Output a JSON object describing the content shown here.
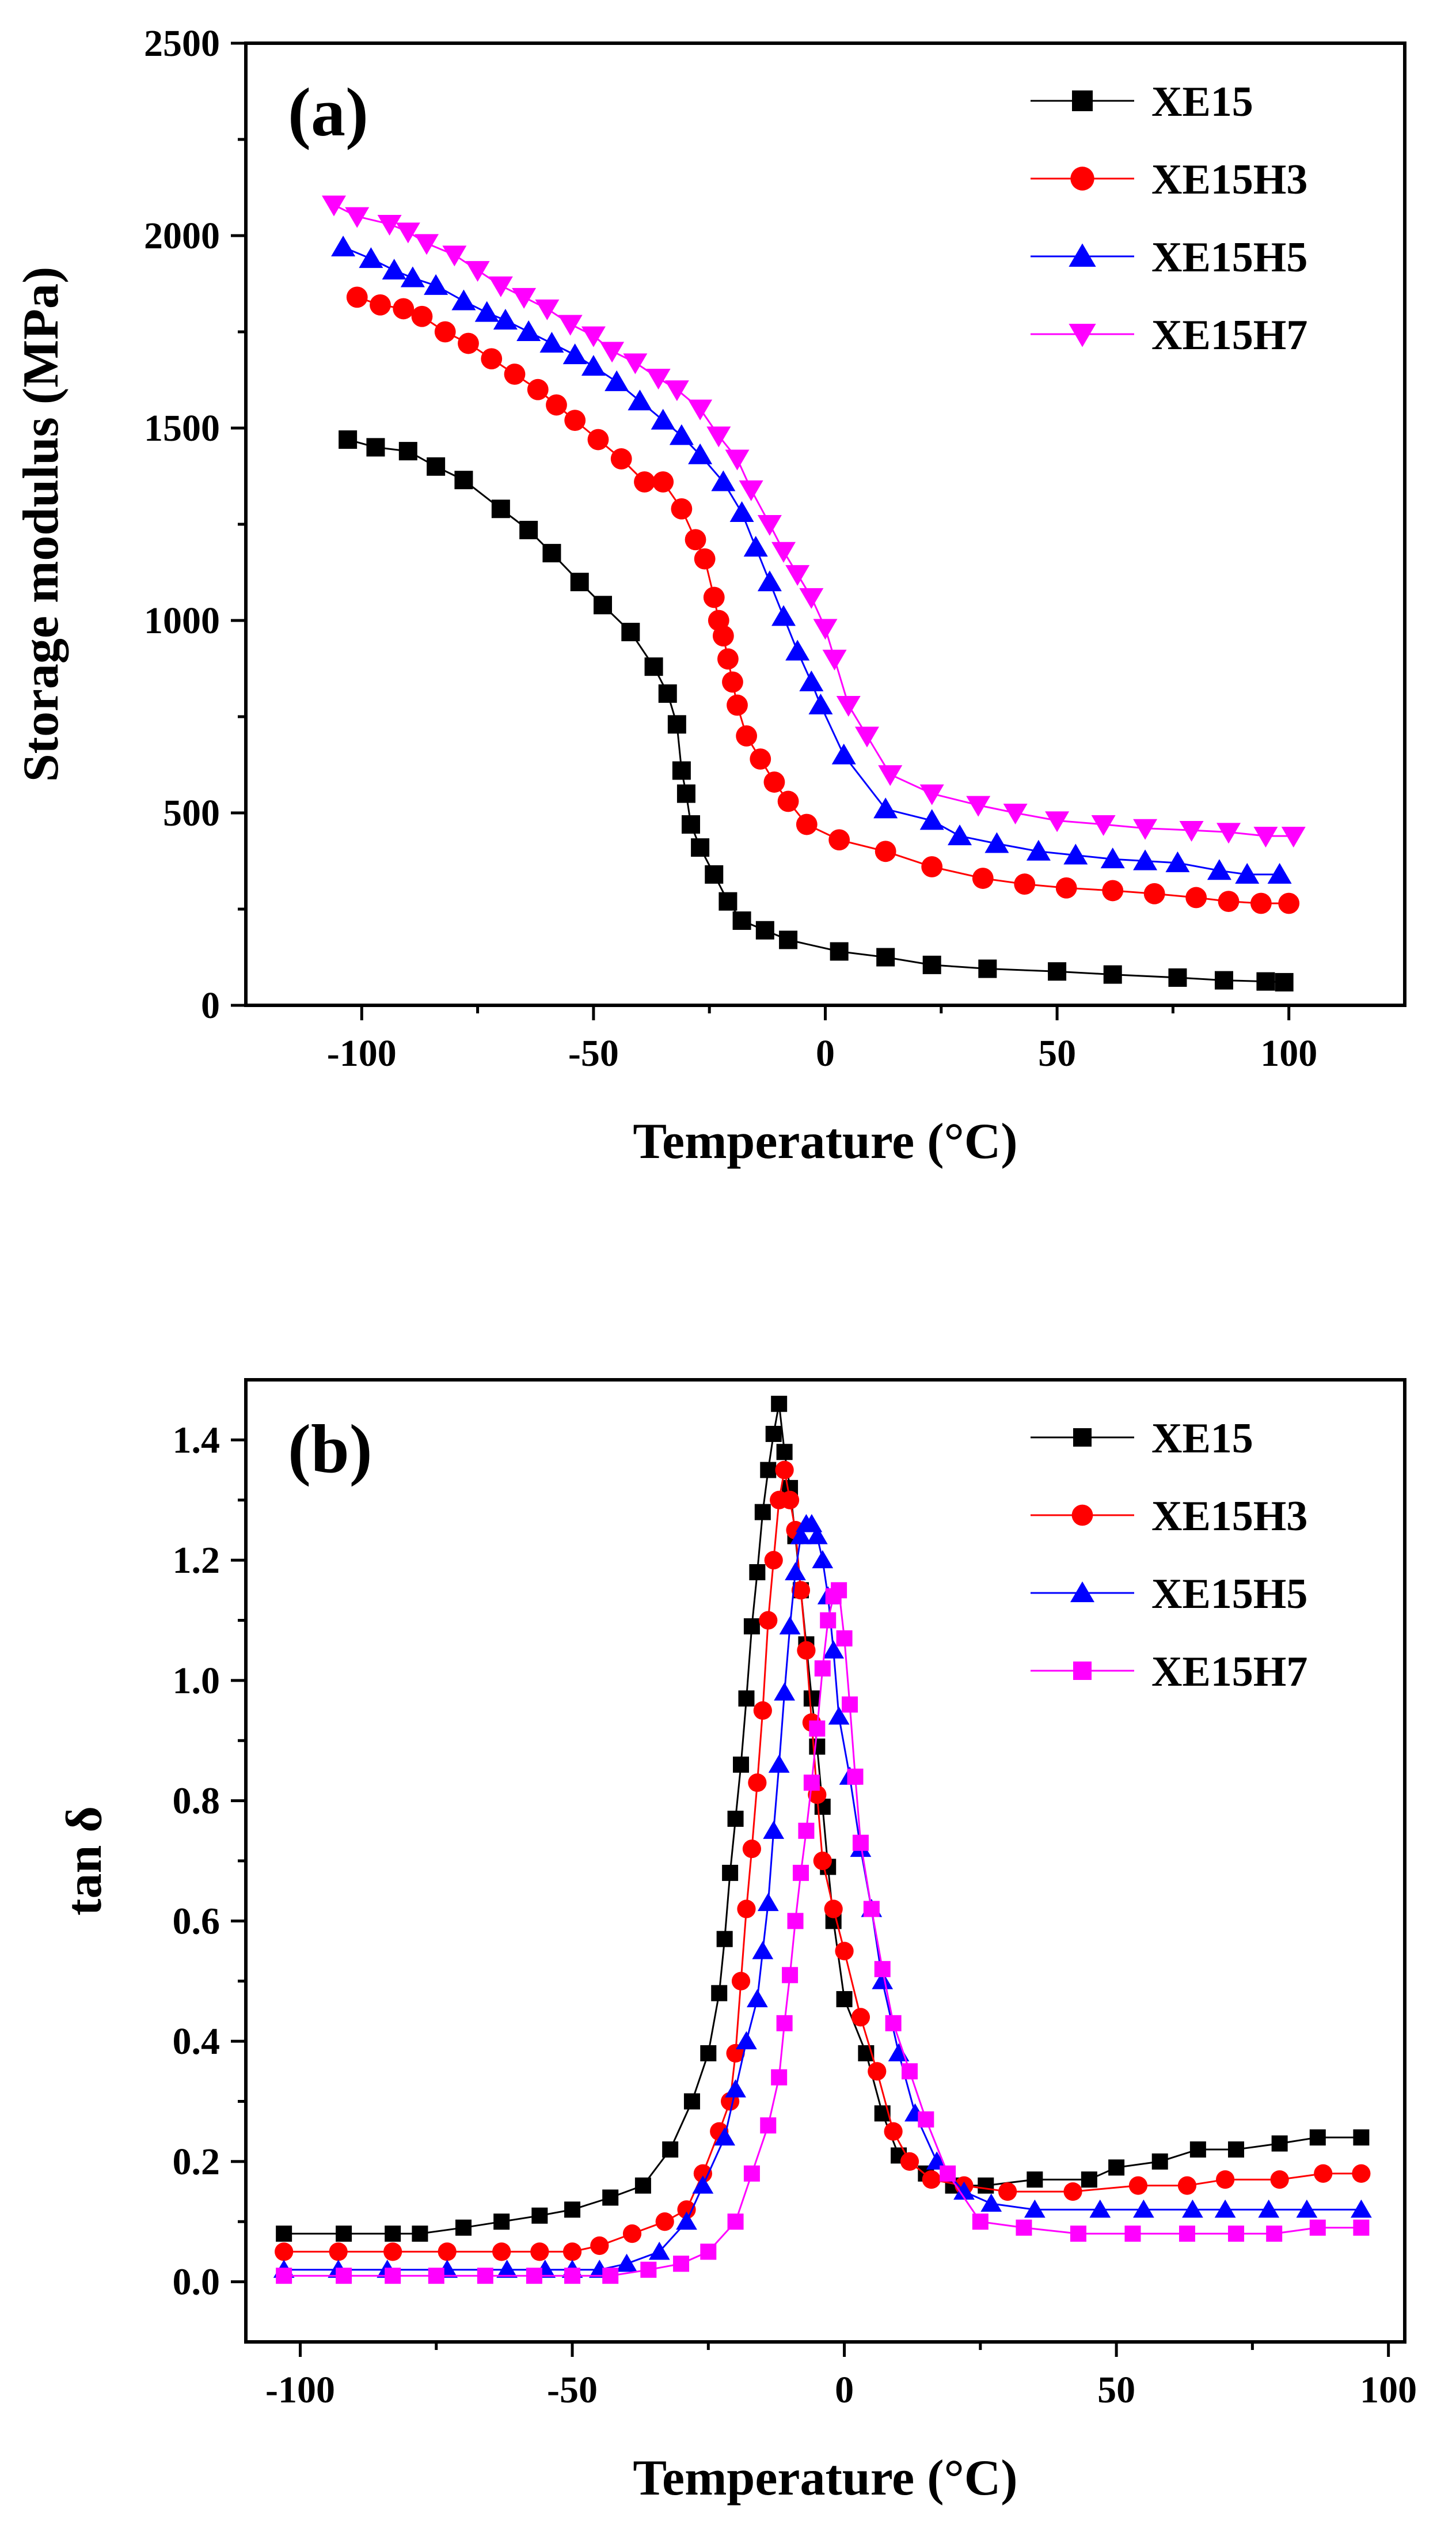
{
  "chart_data": [
    {
      "type": "line",
      "panel_label": "(a)",
      "title": "",
      "xlabel": "Temperature (°C)",
      "ylabel": "Storage modulus (MPa)",
      "xlim": [
        -125,
        125
      ],
      "ylim": [
        0,
        2500
      ],
      "xticks": [
        -100,
        -50,
        0,
        50,
        100
      ],
      "yticks": [
        0,
        500,
        1000,
        1500,
        2000,
        2500
      ],
      "legend_position": "top-right",
      "grid": false,
      "series": [
        {
          "name": "XE15",
          "color": "#000000",
          "marker": "square",
          "x": [
            -103,
            -97,
            -90,
            -84,
            -78,
            -70,
            -64,
            -59,
            -53,
            -48,
            -42,
            -37,
            -34,
            -32,
            -31,
            -30,
            -29,
            -27,
            -24,
            -21,
            -18,
            -13,
            -8,
            3,
            13,
            23,
            35,
            50,
            62,
            76,
            86,
            95,
            99
          ],
          "y": [
            1470,
            1450,
            1440,
            1400,
            1365,
            1290,
            1235,
            1175,
            1100,
            1040,
            970,
            880,
            810,
            730,
            610,
            550,
            470,
            410,
            340,
            270,
            220,
            195,
            170,
            140,
            125,
            105,
            95,
            88,
            80,
            72,
            65,
            62,
            60
          ]
        },
        {
          "name": "XE15H3",
          "color": "#ff0000",
          "marker": "circle",
          "x": [
            -101,
            -96,
            -91,
            -87,
            -82,
            -77,
            -72,
            -67,
            -62,
            -58,
            -54,
            -49,
            -44,
            -39,
            -35,
            -31,
            -28,
            -26,
            -24,
            -23,
            -22,
            -21,
            -20,
            -19,
            -17,
            -14,
            -11,
            -8,
            -4,
            3,
            13,
            23,
            34,
            43,
            52,
            62,
            71,
            80,
            87,
            94,
            100
          ],
          "y": [
            1840,
            1820,
            1810,
            1790,
            1750,
            1720,
            1680,
            1640,
            1600,
            1560,
            1520,
            1470,
            1420,
            1360,
            1360,
            1290,
            1210,
            1160,
            1060,
            1000,
            960,
            900,
            840,
            780,
            700,
            640,
            580,
            530,
            470,
            430,
            400,
            360,
            330,
            315,
            305,
            298,
            290,
            280,
            270,
            265,
            265
          ]
        },
        {
          "name": "XE15H5",
          "color": "#0000ff",
          "marker": "triangle-up",
          "x": [
            -104,
            -98,
            -93,
            -89,
            -84,
            -78,
            -73,
            -69,
            -64,
            -59,
            -54,
            -50,
            -45,
            -40,
            -35,
            -31,
            -27,
            -22,
            -18,
            -15,
            -12,
            -9,
            -6,
            -3,
            -1,
            4,
            13,
            23,
            29,
            37,
            46,
            54,
            62,
            69,
            76,
            85,
            91,
            98
          ],
          "y": [
            1970,
            1940,
            1910,
            1890,
            1870,
            1830,
            1800,
            1780,
            1750,
            1720,
            1690,
            1660,
            1620,
            1570,
            1520,
            1480,
            1430,
            1360,
            1280,
            1190,
            1100,
            1010,
            920,
            840,
            780,
            650,
            510,
            480,
            440,
            420,
            400,
            390,
            380,
            375,
            370,
            350,
            340,
            340
          ]
        },
        {
          "name": "XE15H7",
          "color": "#ff00ff",
          "marker": "triangle-down",
          "x": [
            -106,
            -101,
            -94,
            -90,
            -86,
            -80,
            -75,
            -70,
            -65,
            -60,
            -55,
            -50,
            -46,
            -41,
            -36,
            -32,
            -27,
            -23,
            -19,
            -16,
            -12,
            -9,
            -6,
            -3,
            0,
            2,
            5,
            9,
            14,
            23,
            33,
            41,
            50,
            60,
            69,
            79,
            87,
            95,
            101
          ],
          "y": [
            2080,
            2050,
            2030,
            2010,
            1980,
            1950,
            1910,
            1870,
            1840,
            1810,
            1770,
            1740,
            1700,
            1670,
            1630,
            1600,
            1550,
            1480,
            1420,
            1340,
            1250,
            1180,
            1120,
            1060,
            980,
            900,
            780,
            700,
            600,
            550,
            520,
            500,
            480,
            470,
            460,
            455,
            450,
            440,
            440
          ]
        }
      ]
    },
    {
      "type": "line",
      "panel_label": "(b)",
      "title": "",
      "xlabel": "Temperature (°C)",
      "ylabel": "tan δ",
      "xlim": [
        -110,
        103
      ],
      "ylim": [
        -0.1,
        1.5
      ],
      "xticks": [
        -100,
        -50,
        0,
        50,
        100
      ],
      "yticks": [
        0.0,
        0.2,
        0.4,
        0.6,
        0.8,
        1.0,
        1.2,
        1.4
      ],
      "yticklabels": [
        "0.0",
        "0.2",
        "0.4",
        "0.6",
        "0.8",
        "1.0",
        "1.2",
        "1.4"
      ],
      "legend_position": "top-right",
      "grid": false,
      "series": [
        {
          "name": "XE15",
          "color": "#000000",
          "marker": "square",
          "x": [
            -103,
            -92,
            -83,
            -78,
            -70,
            -63,
            -56,
            -50,
            -43,
            -37,
            -32,
            -28,
            -25,
            -23,
            -22,
            -21,
            -20,
            -19,
            -18,
            -17,
            -16,
            -15,
            -14,
            -13,
            -12,
            -11,
            -10,
            -9,
            -8,
            -7,
            -6,
            -5,
            -4,
            -3,
            -2,
            0,
            4,
            7,
            10,
            15,
            20,
            26,
            35,
            45,
            50,
            58,
            65,
            72,
            80,
            87,
            95
          ],
          "y": [
            0.08,
            0.08,
            0.08,
            0.08,
            0.09,
            0.1,
            0.11,
            0.12,
            0.14,
            0.16,
            0.22,
            0.3,
            0.38,
            0.48,
            0.57,
            0.68,
            0.77,
            0.86,
            0.97,
            1.09,
            1.18,
            1.28,
            1.35,
            1.41,
            1.46,
            1.38,
            1.32,
            1.24,
            1.15,
            1.06,
            0.97,
            0.89,
            0.79,
            0.69,
            0.6,
            0.47,
            0.38,
            0.28,
            0.21,
            0.18,
            0.16,
            0.16,
            0.17,
            0.17,
            0.19,
            0.2,
            0.22,
            0.22,
            0.23,
            0.24,
            0.24
          ]
        },
        {
          "name": "XE15H3",
          "color": "#ff0000",
          "marker": "circle",
          "x": [
            -103,
            -93,
            -83,
            -73,
            -63,
            -56,
            -50,
            -45,
            -39,
            -33,
            -29,
            -26,
            -23,
            -21,
            -20,
            -19,
            -18,
            -17,
            -16,
            -15,
            -14,
            -13,
            -12,
            -11,
            -10,
            -9,
            -8,
            -7,
            -6,
            -5,
            -4,
            -2,
            0,
            3,
            6,
            9,
            12,
            16,
            22,
            30,
            42,
            54,
            63,
            70,
            80,
            88,
            95
          ],
          "y": [
            0.05,
            0.05,
            0.05,
            0.05,
            0.05,
            0.05,
            0.05,
            0.06,
            0.08,
            0.1,
            0.12,
            0.18,
            0.25,
            0.3,
            0.38,
            0.5,
            0.62,
            0.72,
            0.83,
            0.95,
            1.1,
            1.2,
            1.3,
            1.35,
            1.3,
            1.25,
            1.15,
            1.05,
            0.93,
            0.81,
            0.7,
            0.62,
            0.55,
            0.44,
            0.35,
            0.25,
            0.2,
            0.17,
            0.16,
            0.15,
            0.15,
            0.16,
            0.16,
            0.17,
            0.17,
            0.18,
            0.18
          ]
        },
        {
          "name": "XE15H5",
          "color": "#0000ff",
          "marker": "triangle-up",
          "x": [
            -103,
            -93,
            -84,
            -73,
            -62,
            -55,
            -50,
            -45,
            -40,
            -34,
            -29,
            -26,
            -22,
            -20,
            -18,
            -16,
            -15,
            -14,
            -13,
            -12,
            -11,
            -10,
            -9,
            -8,
            -7,
            -6,
            -5,
            -4,
            -3,
            -2,
            -1,
            1,
            3,
            5,
            7,
            10,
            13,
            17,
            22,
            27,
            35,
            47,
            55,
            64,
            70,
            78,
            85,
            95
          ],
          "y": [
            0.02,
            0.02,
            0.02,
            0.02,
            0.02,
            0.02,
            0.02,
            0.02,
            0.03,
            0.05,
            0.1,
            0.16,
            0.24,
            0.32,
            0.4,
            0.47,
            0.55,
            0.63,
            0.75,
            0.86,
            0.98,
            1.09,
            1.18,
            1.24,
            1.26,
            1.26,
            1.24,
            1.2,
            1.14,
            1.05,
            0.94,
            0.84,
            0.72,
            0.62,
            0.5,
            0.38,
            0.28,
            0.2,
            0.15,
            0.13,
            0.12,
            0.12,
            0.12,
            0.12,
            0.12,
            0.12,
            0.12,
            0.12
          ]
        },
        {
          "name": "XE15H7",
          "color": "#ff00ff",
          "marker": "square",
          "x": [
            -103,
            -92,
            -83,
            -75,
            -66,
            -57,
            -50,
            -43,
            -36,
            -30,
            -25,
            -20,
            -17,
            -14,
            -12,
            -11,
            -10,
            -9,
            -8,
            -7,
            -6,
            -5,
            -4,
            -3,
            -2,
            -1,
            0,
            1,
            2,
            3,
            5,
            7,
            9,
            12,
            15,
            19,
            25,
            33,
            43,
            53,
            63,
            72,
            79,
            87,
            95
          ],
          "y": [
            0.01,
            0.01,
            0.01,
            0.01,
            0.01,
            0.01,
            0.01,
            0.01,
            0.02,
            0.03,
            0.05,
            0.1,
            0.18,
            0.26,
            0.34,
            0.43,
            0.51,
            0.6,
            0.68,
            0.75,
            0.83,
            0.92,
            1.02,
            1.1,
            1.14,
            1.15,
            1.07,
            0.96,
            0.84,
            0.73,
            0.62,
            0.52,
            0.43,
            0.35,
            0.27,
            0.18,
            0.1,
            0.09,
            0.08,
            0.08,
            0.08,
            0.08,
            0.08,
            0.09,
            0.09
          ]
        }
      ]
    }
  ]
}
